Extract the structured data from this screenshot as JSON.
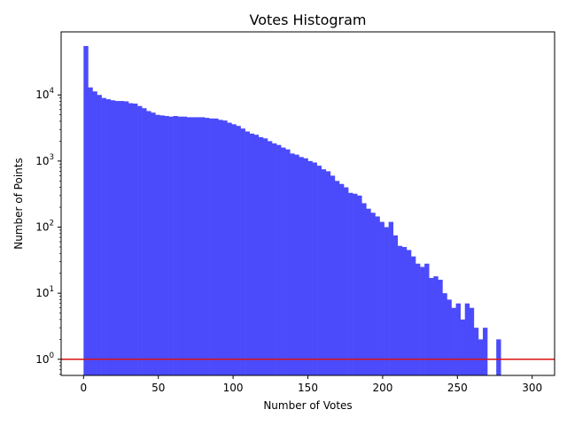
{
  "chart_data": {
    "type": "bar",
    "title": "Votes Histogram",
    "xlabel": "Number of Votes",
    "ylabel": "Number of Points",
    "xlim": [
      -15,
      315
    ],
    "ylim": [
      0.57,
      90000
    ],
    "yscale": "log",
    "grid": false,
    "xticks": [
      0,
      50,
      100,
      150,
      200,
      250,
      300
    ],
    "yticks": [
      {
        "value": 1,
        "base": "10",
        "exp": "0"
      },
      {
        "value": 10,
        "base": "10",
        "exp": "1"
      },
      {
        "value": 100,
        "base": "10",
        "exp": "2"
      },
      {
        "value": 1000,
        "base": "10",
        "exp": "3"
      },
      {
        "value": 10000,
        "base": "10",
        "exp": "4"
      }
    ],
    "bar_color": "#4b4bfc",
    "hline": {
      "y": 1,
      "color": "#dd1111"
    },
    "bin_width": 3,
    "bins_start": 0,
    "values": [
      55000,
      13000,
      11300,
      10000,
      9000,
      8600,
      8300,
      8100,
      8100,
      8000,
      7500,
      7400,
      6800,
      6300,
      5700,
      5400,
      5000,
      4900,
      4800,
      4700,
      4800,
      4700,
      4700,
      4600,
      4600,
      4600,
      4600,
      4500,
      4400,
      4400,
      4200,
      4100,
      3800,
      3600,
      3400,
      3100,
      2800,
      2600,
      2500,
      2300,
      2200,
      2000,
      1850,
      1750,
      1600,
      1500,
      1300,
      1250,
      1150,
      1100,
      1000,
      950,
      850,
      750,
      700,
      600,
      500,
      450,
      400,
      330,
      320,
      300,
      230,
      190,
      165,
      145,
      120,
      100,
      120,
      75,
      52,
      50,
      45,
      36,
      28,
      25,
      28,
      17,
      18,
      16,
      10,
      8,
      6,
      7,
      4,
      7,
      6,
      3,
      2,
      3,
      0,
      0,
      2,
      0
    ]
  }
}
